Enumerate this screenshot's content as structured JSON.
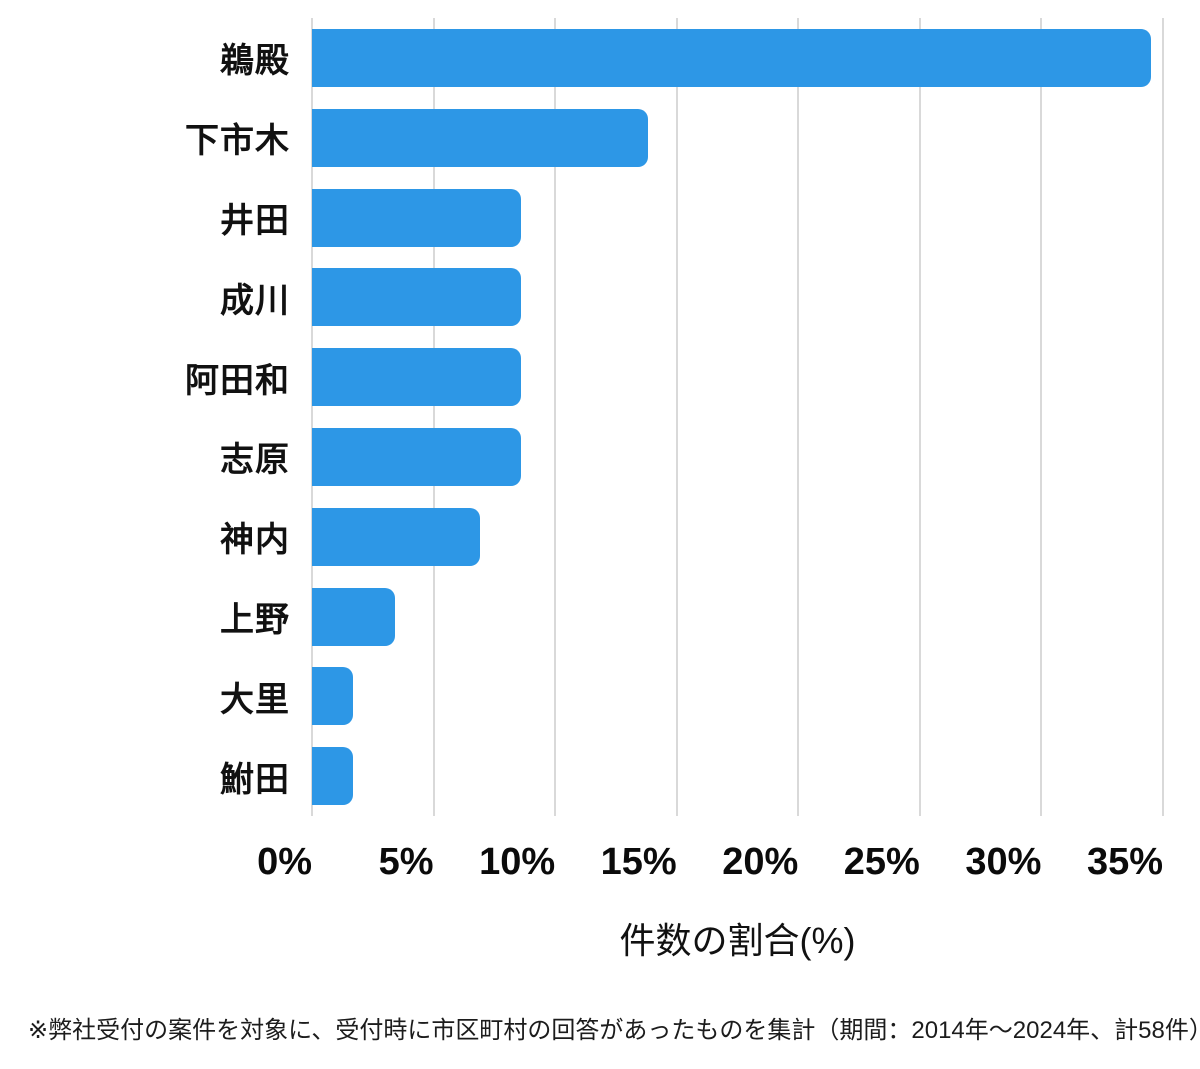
{
  "chart_data": {
    "type": "bar",
    "orientation": "horizontal",
    "categories": [
      "鵜殿",
      "下市木",
      "井田",
      "成川",
      "阿田和",
      "志原",
      "神内",
      "上野",
      "大里",
      "鮒田"
    ],
    "values": [
      34.5,
      13.8,
      8.6,
      8.6,
      8.6,
      8.6,
      6.9,
      3.4,
      1.7,
      1.7
    ],
    "values_unit": "%",
    "xlabel": "件数の割合(%)",
    "x_tick_labels": [
      "0%",
      "5%",
      "10%",
      "15%",
      "20%",
      "25%",
      "30%",
      "35%"
    ],
    "x_tick_values": [
      0,
      5,
      10,
      15,
      20,
      25,
      30,
      35
    ],
    "xlim": [
      0,
      35
    ],
    "grid": true,
    "legend": false,
    "bar_color": "#2d97e6",
    "grid_color": "#d9d9d9",
    "text_color": "#111111"
  },
  "footnote": "※弊社受付の案件を対象に、受付時に市区町村の回答があったものを集計（期間：2014年～2024年、計58件）"
}
